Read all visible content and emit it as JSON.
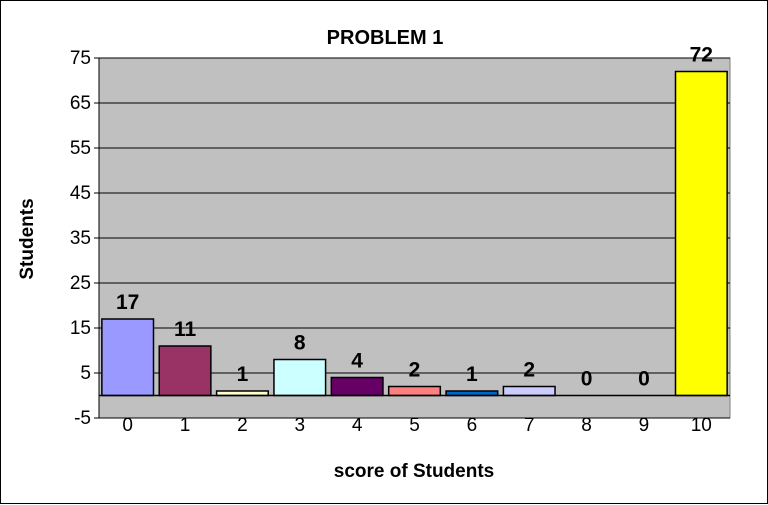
{
  "chart_data": {
    "type": "bar",
    "title": "PROBLEM 1",
    "xlabel": "score of Students",
    "ylabel": "Students",
    "categories": [
      "0",
      "1",
      "2",
      "3",
      "4",
      "5",
      "6",
      "7",
      "8",
      "9",
      "10"
    ],
    "values": [
      17,
      11,
      1,
      8,
      4,
      2,
      1,
      2,
      0,
      0,
      72
    ],
    "colors": [
      "#9999ff",
      "#993366",
      "#ffffcc",
      "#ccffff",
      "#660066",
      "#ff8080",
      "#0066cc",
      "#ccccff",
      "#000080",
      "#ff00ff",
      "#ffff00"
    ],
    "ylim": [
      -5,
      75
    ],
    "yticks": [
      75,
      65,
      55,
      45,
      35,
      25,
      15,
      5,
      -5
    ],
    "grid": true,
    "plot_background": "#c0c0c0",
    "legend": "none"
  }
}
